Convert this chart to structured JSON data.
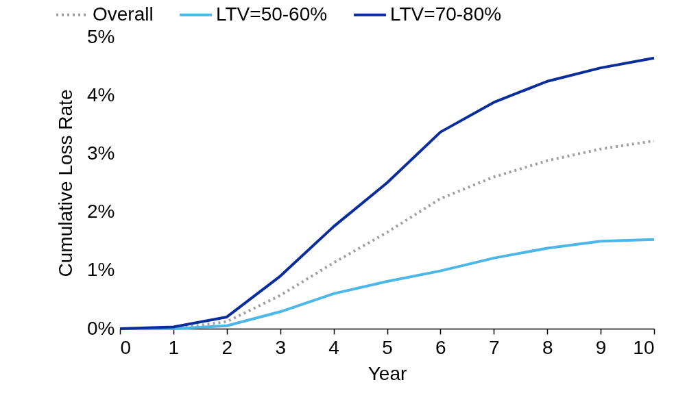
{
  "chart_data": {
    "type": "line",
    "xlabel": "Year",
    "ylabel": "Cumulative Loss Rate",
    "x": [
      0,
      1,
      2,
      3,
      4,
      5,
      6,
      7,
      8,
      9,
      10
    ],
    "series": [
      {
        "name": "Overall",
        "color": "#a0a0a0",
        "line_style": "dotted",
        "values": [
          0,
          0,
          0.12,
          0.57,
          1.13,
          1.65,
          2.23,
          2.6,
          2.88,
          3.08,
          3.22
        ]
      },
      {
        "name": "LTV=50-60%",
        "color": "#4db8e8",
        "line_style": "solid",
        "values": [
          0,
          0,
          0.05,
          0.29,
          0.6,
          0.81,
          0.99,
          1.21,
          1.38,
          1.5,
          1.53
        ]
      },
      {
        "name": "LTV=70-80%",
        "color": "#0a2d9c",
        "line_style": "solid",
        "values": [
          0,
          0.03,
          0.2,
          0.9,
          1.75,
          2.5,
          3.37,
          3.88,
          4.24,
          4.47,
          4.64
        ]
      }
    ],
    "xlim": [
      0,
      10
    ],
    "xticks": [
      0,
      1,
      2,
      3,
      4,
      5,
      6,
      7,
      8,
      9,
      10
    ],
    "ylim": [
      0,
      5
    ],
    "yticks": [
      {
        "value": 0,
        "label": "0%"
      },
      {
        "value": 1,
        "label": "1%"
      },
      {
        "value": 2,
        "label": "2%"
      },
      {
        "value": 3,
        "label": "3%"
      },
      {
        "value": 4,
        "label": "4%"
      },
      {
        "value": 5,
        "label": "5%"
      }
    ],
    "grid": false,
    "legend": "top",
    "marker": "none"
  }
}
